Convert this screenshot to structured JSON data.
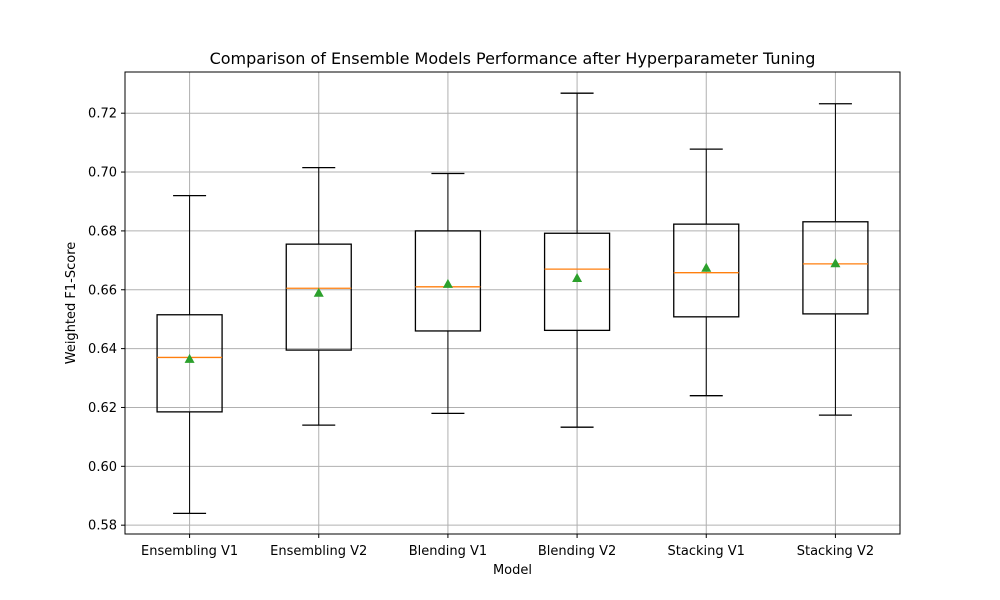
{
  "chart_data": {
    "type": "box",
    "title": "Comparison of Ensemble Models Performance after Hyperparameter Tuning",
    "xlabel": "Model",
    "ylabel": "Weighted F1-Score",
    "ylim": [
      0.577,
      0.734
    ],
    "yticks": [
      "0.58",
      "0.60",
      "0.62",
      "0.64",
      "0.66",
      "0.68",
      "0.70",
      "0.72"
    ],
    "grid": true,
    "categories": [
      "Ensembling V1",
      "Ensembling V2",
      "Blending V1",
      "Blending V2",
      "Stacking V1",
      "Stacking V2"
    ],
    "boxes": [
      {
        "whisker_low": 0.584,
        "q1": 0.6185,
        "median": 0.637,
        "q3": 0.6515,
        "whisker_high": 0.692,
        "mean": 0.6365
      },
      {
        "whisker_low": 0.614,
        "q1": 0.6395,
        "median": 0.6605,
        "q3": 0.6755,
        "whisker_high": 0.7015,
        "mean": 0.659
      },
      {
        "whisker_low": 0.618,
        "q1": 0.646,
        "median": 0.661,
        "q3": 0.68,
        "whisker_high": 0.6995,
        "mean": 0.662
      },
      {
        "whisker_low": 0.6133,
        "q1": 0.6462,
        "median": 0.667,
        "q3": 0.6792,
        "whisker_high": 0.7268,
        "mean": 0.664
      },
      {
        "whisker_low": 0.624,
        "q1": 0.6508,
        "median": 0.6658,
        "q3": 0.6823,
        "whisker_high": 0.7078,
        "mean": 0.6675
      },
      {
        "whisker_low": 0.6174,
        "q1": 0.6518,
        "median": 0.6688,
        "q3": 0.6831,
        "whisker_high": 0.7232,
        "mean": 0.669
      }
    ],
    "colors": {
      "box": "#000000",
      "median": "#ff7f0e",
      "mean": "#2ca02c",
      "grid": "#b0b0b0"
    }
  }
}
